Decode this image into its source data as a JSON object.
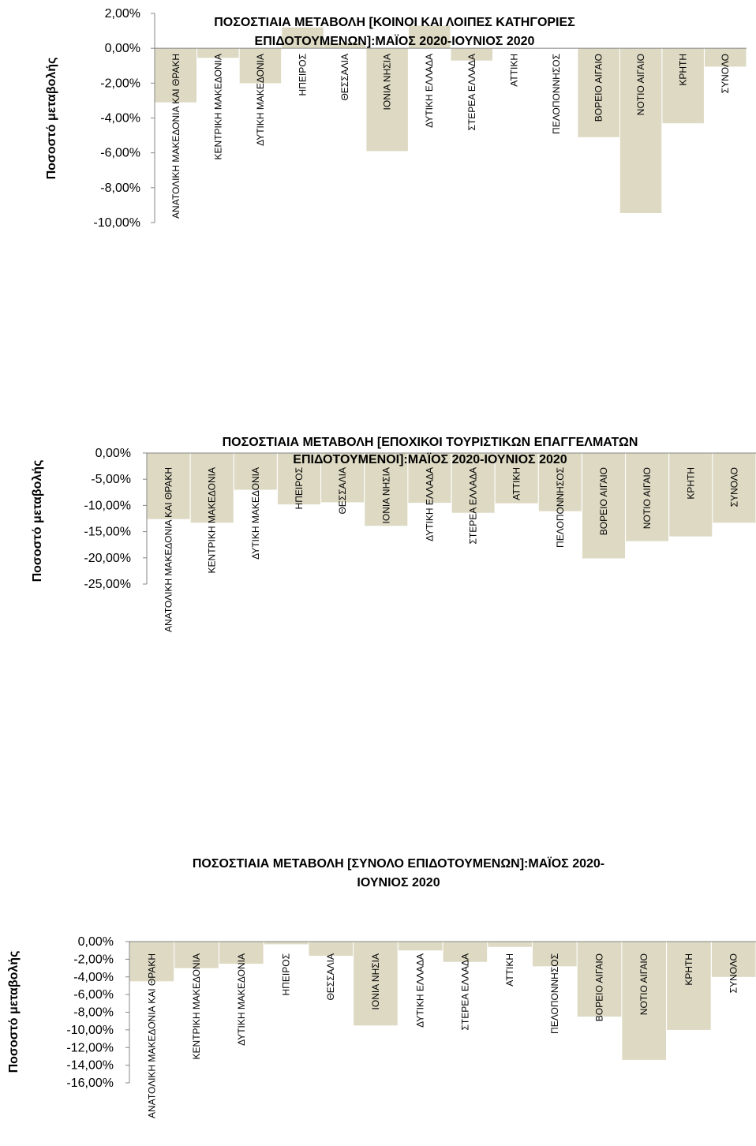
{
  "chart_data": [
    {
      "type": "bar",
      "title": "ΠΟΣΟΣΤΙΑΙΑ ΜΕΤΑΒΟΛΗ [ΚΟΙΝΟΙ ΚΑΙ ΛΟΙΠΕΣ ΚΑΤΗΓΟΡΙΕΣ ΕΠΙΔΟΤΟΥΜΕΝΩΝ]:ΜΑΪΟΣ 2020-ΙΟΥΝΙΟΣ 2020",
      "title_lines": [
        "ΠΟΣΟΣΤΙΑΙΑ ΜΕΤΑΒΟΛΗ [ΚΟΙΝΟΙ ΚΑΙ ΛΟΙΠΕΣ ΚΑΤΗΓΟΡΙΕΣ",
        "ΕΠΙΔΟΤΟΥΜΕΝΩΝ]:ΜΑΪΟΣ  2020-ΙΟΥΝΙΟΣ 2020"
      ],
      "ylabel": "Ποσοστό μεταβολής",
      "ylim": [
        -10,
        2
      ],
      "yticks": [
        2,
        0,
        -2,
        -4,
        -6,
        -8,
        -10
      ],
      "ytick_labels": [
        "2,00%",
        "0,00%",
        "-2,00%",
        "-4,00%",
        "-6,00%",
        "-8,00%",
        "-10,00%"
      ],
      "categories": [
        "ΑΝΑΤΟΛΙΚΗ ΜΑΚΕΔΟΝΙΑ ΚΑΙ ΘΡΑΚΗ",
        "ΚΕΝΤΡΙΚΗ ΜΑΚΕΔΟΝΙΑ",
        "ΔΥΤΙΚΗ ΜΑΚΕΔΟΝΙΑ",
        "ΗΠΕΙΡΟΣ",
        "ΘΕΣΣΑΛΙΑ",
        "ΙΟΝΙΑ ΝΗΣΙΑ",
        "ΔΥΤΙΚΗ ΕΛΛΑΔΑ",
        "ΣΤΕΡΕΑ ΕΛΛΑΔΑ",
        "ΑΤΤΙΚΗ",
        "ΠΕΛΟΠΟΝΝΗΣΟΣ",
        "ΒΟΡΕΙΟ ΑΙΓΑΙΟ",
        "ΝΟΤΙΟ ΑΙΓΑΙΟ",
        "ΚΡΗΤΗ",
        "ΣΥΝΟΛΟ"
      ],
      "values": [
        -3.1,
        -0.55,
        -2.0,
        1.2,
        0.3,
        -5.9,
        1.3,
        -0.7,
        0.0,
        0.0,
        -5.1,
        -9.45,
        -4.3,
        -1.05
      ],
      "bar_color": "#ddd9c3",
      "grid": false,
      "legend": "none"
    },
    {
      "type": "bar",
      "title": "ΠΟΣΟΣΤΙΑΙΑ ΜΕΤΑΒΟΛΗ [ΕΠΟΧΙΚΟΙ ΤΟΥΡΙΣΤΙΚΩΝ ΕΠΑΓΓΕΛΜΑΤΩΝ ΕΠΙΔΟΤΟΥΜΕΝΟΙ]:ΜΑΪΟΣ 2020-ΙΟΥΝΙΟΣ 2020",
      "title_lines": [
        "ΠΟΣΟΣΤΙΑΙΑ ΜΕΤΑΒΟΛΗ [ΕΠΟΧΙΚΟΙ ΤΟΥΡΙΣΤΙΚΩΝ ΕΠΑΓΓΕΛΜΑΤΩΝ",
        "ΕΠΙΔΟΤΟΥΜΕΝΟΙ]:ΜΑΪΟΣ 2020-ΙΟΥΝΙΟΣ 2020"
      ],
      "ylabel": "Ποσοστό μεταβολής",
      "ylim": [
        -25,
        0
      ],
      "yticks": [
        0,
        -5,
        -10,
        -15,
        -20,
        -25
      ],
      "ytick_labels": [
        "0,00%",
        "-5,00%",
        "-10,00%",
        "-15,00%",
        "-20,00%",
        "-25,00%"
      ],
      "categories": [
        "ΑΝΑΤΟΛΙΚΗ ΜΑΚΕΔΟΝΙΑ ΚΑΙ ΘΡΑΚΗ",
        "ΚΕΝΤΡΙΚΗ ΜΑΚΕΔΟΝΙΑ",
        "ΔΥΤΙΚΗ ΜΑΚΕΔΟΝΙΑ",
        "ΗΠΕΙΡΟΣ",
        "ΘΕΣΣΑΛΙΑ",
        "ΙΟΝΙΑ ΝΗΣΙΑ",
        "ΔΥΤΙΚΗ ΕΛΛΑΔΑ",
        "ΣΤΕΡΕΑ ΕΛΛΑΔΑ",
        "ΑΤΤΙΚΗ",
        "ΠΕΛΟΠΟΝΝΗΣΟΣ",
        "ΒΟΡΕΙΟ ΑΙΓΑΙΟ",
        "ΝΟΤΙΟ ΑΙΓΑΙΟ",
        "ΚΡΗΤΗ",
        "ΣΥΝΟΛΟ"
      ],
      "values": [
        -12.6,
        -13.3,
        -7.0,
        -9.8,
        -9.4,
        -13.9,
        -9.5,
        -11.4,
        -9.6,
        -11.1,
        -20.1,
        -16.8,
        -15.9,
        -13.3
      ],
      "bar_color": "#ddd9c3",
      "grid": false,
      "legend": "none"
    },
    {
      "type": "bar",
      "title": "ΠΟΣΟΣΤΙΑΙΑ ΜΕΤΑΒΟΛΗ [ΣΥΝΟΛΟ ΕΠΙΔΟΤΟΥΜΕΝΩΝ]:ΜΑΪΟΣ 2020-ΙΟΥΝΙΟΣ 2020",
      "title_lines": [
        "ΠΟΣΟΣΤΙΑΙΑ ΜΕΤΑΒΟΛΗ [ΣΥΝΟΛΟ ΕΠΙΔΟΤΟΥΜΕΝΩΝ]:ΜΑΪΟΣ 2020-",
        "ΙΟΥΝΙΟΣ 2020"
      ],
      "ylabel": "Ποσοστό μεταβολής",
      "ylim": [
        -16,
        0
      ],
      "yticks": [
        0,
        -2,
        -4,
        -6,
        -8,
        -10,
        -12,
        -14,
        -16
      ],
      "ytick_labels": [
        "0,00%",
        "-2,00%",
        "-4,00%",
        "-6,00%",
        "-8,00%",
        "-10,00%",
        "-12,00%",
        "-14,00%",
        "-16,00%"
      ],
      "categories": [
        "ΑΝΑΤΟΛΙΚΗ ΜΑΚΕΔΟΝΙΑ ΚΑΙ ΘΡΑΚΗ",
        "ΚΕΝΤΡΙΚΗ ΜΑΚΕΔΟΝΙΑ",
        "ΔΥΤΙΚΗ ΜΑΚΕΔΟΝΙΑ",
        "ΗΠΕΙΡΟΣ",
        "ΘΕΣΣΑΛΙΑ",
        "ΙΟΝΙΑ ΝΗΣΙΑ",
        "ΔΥΤΙΚΗ ΕΛΛΑΔΑ",
        "ΣΤΕΡΕΑ ΕΛΛΑΔΑ",
        "ΑΤΤΙΚΗ",
        "ΠΕΛΟΠΟΝΝΗΣΟΣ",
        "ΒΟΡΕΙΟ ΑΙΓΑΙΟ",
        "ΝΟΤΙΟ ΑΙΓΑΙΟ",
        "ΚΡΗΤΗ",
        "ΣΥΝΟΛΟ"
      ],
      "values": [
        -4.5,
        -3.0,
        -2.5,
        -0.3,
        -1.6,
        -9.5,
        -1.0,
        -2.3,
        -0.6,
        -2.8,
        -8.5,
        -13.4,
        -10.0,
        -4.0
      ],
      "bar_color": "#ddd9c3",
      "grid": false,
      "legend": "none"
    }
  ]
}
